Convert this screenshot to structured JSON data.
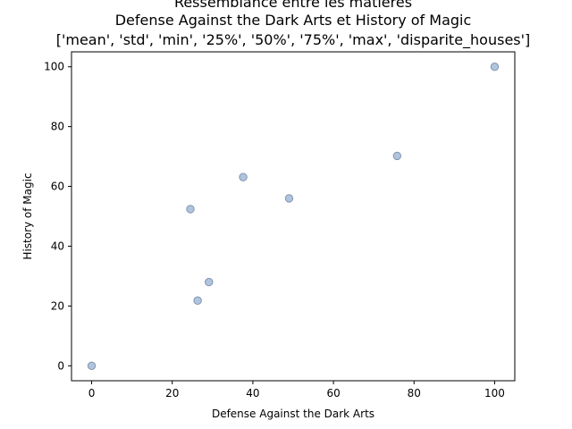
{
  "chart_data": {
    "type": "scatter",
    "title_lines": [
      "Ressemblance entre les matières",
      "Defense Against the Dark Arts et History of Magic",
      "['mean', 'std', 'min', '25%', '50%', '75%', 'max', 'disparite_houses']"
    ],
    "xlabel": "Defense Against the Dark Arts",
    "ylabel": "History of Magic",
    "xlim": [
      -5,
      105
    ],
    "ylim": [
      -5,
      105
    ],
    "xticks": [
      0,
      20,
      40,
      60,
      80,
      100
    ],
    "yticks": [
      0,
      20,
      40,
      60,
      80,
      100
    ],
    "grid": false,
    "marker_fill": "#b0c4de",
    "marker_edge": "#7f93ad",
    "points": [
      {
        "x": 0,
        "y": 0
      },
      {
        "x": 24.5,
        "y": 52.4
      },
      {
        "x": 26.3,
        "y": 21.8
      },
      {
        "x": 29.1,
        "y": 28.0
      },
      {
        "x": 37.6,
        "y": 63.1
      },
      {
        "x": 49.0,
        "y": 56.0
      },
      {
        "x": 75.8,
        "y": 70.2
      },
      {
        "x": 100,
        "y": 100
      }
    ]
  }
}
